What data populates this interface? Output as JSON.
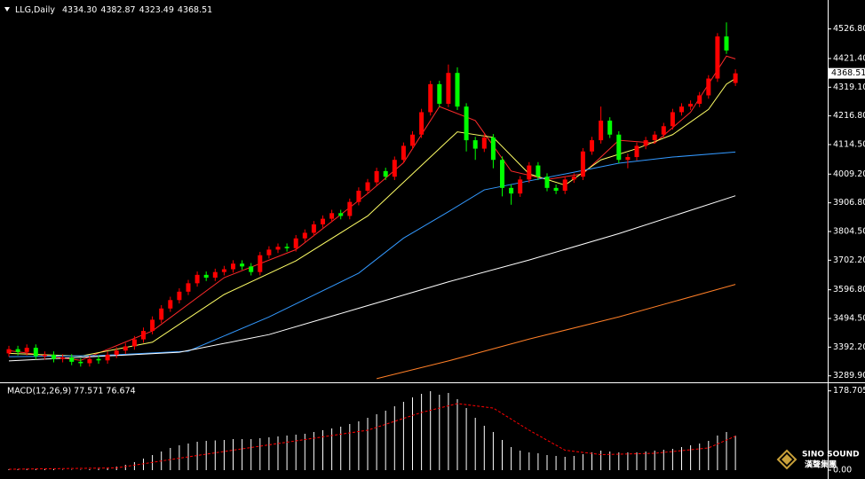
{
  "chart_data": [
    {
      "type": "candlestick",
      "title": "LLG,Daily",
      "info": [
        "4334.30",
        "4382.87",
        "4323.49",
        "4368.51"
      ],
      "up_color": "#ff0000",
      "down_color": "#00ff00",
      "open": [
        3370,
        3385,
        3375,
        3390,
        3360,
        3365,
        3350,
        3355,
        3340,
        3335,
        3350,
        3345,
        3365,
        3380,
        3395,
        3420,
        3450,
        3490,
        3530,
        3560,
        3590,
        3620,
        3650,
        3640,
        3660,
        3670,
        3690,
        3680,
        3660,
        3720,
        3740,
        3750,
        3745,
        3780,
        3800,
        3830,
        3850,
        3870,
        3860,
        3910,
        3950,
        3980,
        4020,
        4000,
        4060,
        4110,
        4150,
        4230,
        4330,
        4260,
        4370,
        4250,
        4130,
        4100,
        4140,
        4060,
        3960,
        3940,
        3990,
        4040,
        4000,
        3960,
        3950,
        3990,
        4000,
        4090,
        4130,
        4200,
        4150,
        4060,
        4070,
        4110,
        4130,
        4150,
        4180,
        4230,
        4250,
        4260,
        4290,
        4350,
        4500,
        4334.3
      ],
      "high": [
        3397,
        3397,
        3402,
        3402,
        3377,
        3377,
        3367,
        3367,
        3352,
        3362,
        3362,
        3377,
        3392,
        3407,
        3432,
        3462,
        3502,
        3542,
        3572,
        3602,
        3632,
        3662,
        3662,
        3672,
        3682,
        3702,
        3702,
        3692,
        3732,
        3752,
        3762,
        3762,
        3792,
        3812,
        3842,
        3862,
        3882,
        3882,
        3922,
        3962,
        3992,
        4032,
        4032,
        4072,
        4122,
        4162,
        4242,
        4342,
        4342,
        4400,
        4390,
        4262,
        4142,
        4152,
        4152,
        4072,
        3972,
        4002,
        4052,
        4052,
        4012,
        3972,
        4002,
        4012,
        4102,
        4142,
        4250,
        4212,
        4162,
        4082,
        4122,
        4142,
        4162,
        4192,
        4242,
        4262,
        4272,
        4302,
        4362,
        4512,
        4550,
        4382.87
      ],
      "low": [
        3358,
        3363,
        3363,
        3348,
        3348,
        3338,
        3338,
        3328,
        3323,
        3323,
        3333,
        3333,
        3353,
        3368,
        3383,
        3408,
        3438,
        3478,
        3518,
        3548,
        3578,
        3608,
        3628,
        3628,
        3648,
        3658,
        3668,
        3648,
        3648,
        3708,
        3728,
        3733,
        3733,
        3768,
        3788,
        3818,
        3838,
        3848,
        3848,
        3898,
        3938,
        3968,
        3988,
        3988,
        4048,
        4098,
        4138,
        4218,
        4248,
        4248,
        4238,
        4090,
        4060,
        4088,
        4030,
        3930,
        3900,
        3928,
        3978,
        3988,
        3948,
        3938,
        3938,
        3978,
        3988,
        4078,
        4118,
        4138,
        4048,
        4030,
        4058,
        4098,
        4118,
        4138,
        4168,
        4218,
        4238,
        4248,
        4278,
        4338,
        4438,
        4323.49
      ],
      "close": [
        3385,
        3375,
        3390,
        3360,
        3365,
        3350,
        3355,
        3340,
        3335,
        3350,
        3345,
        3365,
        3380,
        3395,
        3420,
        3450,
        3490,
        3530,
        3560,
        3590,
        3620,
        3650,
        3640,
        3660,
        3670,
        3690,
        3680,
        3660,
        3720,
        3740,
        3750,
        3745,
        3780,
        3800,
        3830,
        3850,
        3870,
        3860,
        3910,
        3950,
        3980,
        4020,
        4000,
        4060,
        4110,
        4150,
        4230,
        4330,
        4260,
        4370,
        4250,
        4130,
        4100,
        4140,
        4060,
        3960,
        3940,
        3990,
        4040,
        4000,
        3960,
        3950,
        3990,
        4000,
        4090,
        4130,
        4200,
        4150,
        4060,
        4070,
        4110,
        4130,
        4150,
        4180,
        4230,
        4250,
        4260,
        4290,
        4350,
        4500,
        4450,
        4368.51
      ],
      "lines": [
        {
          "color": "#ff2a2a",
          "x": [
            0,
            8,
            16,
            24,
            32,
            40,
            44,
            48,
            52,
            56,
            60,
            64,
            68,
            72,
            76,
            80,
            81
          ],
          "values": [
            3380,
            3345,
            3450,
            3640,
            3740,
            3940,
            4050,
            4250,
            4200,
            4020,
            3990,
            4010,
            4130,
            4120,
            4230,
            4430,
            4420
          ]
        },
        {
          "color": "#ffff66",
          "x": [
            0,
            8,
            16,
            24,
            32,
            40,
            46,
            50,
            54,
            58,
            62,
            66,
            70,
            74,
            78,
            80,
            81
          ],
          "values": [
            3370,
            3360,
            3410,
            3580,
            3700,
            3860,
            4040,
            4160,
            4140,
            4010,
            3970,
            4060,
            4100,
            4150,
            4240,
            4330,
            4350
          ]
        },
        {
          "color": "#3399ff",
          "x": [
            0,
            10,
            20,
            29,
            39,
            44,
            49,
            53,
            58,
            63,
            68,
            74,
            81
          ],
          "values": [
            3358,
            3362,
            3378,
            3500,
            3656,
            3781,
            3875,
            3953,
            3985,
            4016,
            4048,
            4070,
            4088
          ]
        },
        {
          "color": "#ffffff",
          "x": [
            0,
            19,
            29,
            39,
            49,
            58,
            68,
            81
          ],
          "values": [
            3343,
            3374,
            3437,
            3531,
            3625,
            3703,
            3797,
            3932
          ]
        },
        {
          "color": "#ff7f27",
          "x": [
            41,
            49,
            58,
            68,
            81
          ],
          "values": [
            3280,
            3343,
            3421,
            3500,
            3616
          ]
        }
      ],
      "ylim": [
        3270,
        4630
      ],
      "yticks": [
        {
          "value": 4526.8,
          "label": "4526.80"
        },
        {
          "value": 4421.4,
          "label": "4421.40"
        },
        {
          "value": 4319.1,
          "label": "4319.10"
        },
        {
          "value": 4216.8,
          "label": "4216.80"
        },
        {
          "value": 4114.5,
          "label": "4114.50"
        },
        {
          "value": 4009.2,
          "label": "4009.20"
        },
        {
          "value": 3906.8,
          "label": "3906.80"
        },
        {
          "value": 3804.5,
          "label": "3804.50"
        },
        {
          "value": 3702.2,
          "label": "3702.20"
        },
        {
          "value": 3596.8,
          "label": "3596.80"
        },
        {
          "value": 3494.5,
          "label": "3494.50"
        },
        {
          "value": 3392.2,
          "label": "3392.20"
        },
        {
          "value": 3289.9,
          "label": "3289.90"
        }
      ]
    },
    {
      "type": "macd",
      "title": "MACD(12,26,9) 77.571 76.674",
      "histogram": {
        "color": "#ffffff",
        "values": [
          2,
          2,
          3,
          3,
          2,
          2,
          1,
          1,
          1,
          2,
          3,
          5,
          8,
          12,
          18,
          26,
          34,
          42,
          50,
          56,
          60,
          64,
          66,
          67,
          68,
          70,
          70,
          70,
          72,
          74,
          76,
          78,
          80,
          82,
          86,
          90,
          94,
          98,
          104,
          110,
          118,
          126,
          134,
          144,
          154,
          164,
          172,
          178,
          170,
          174,
          160,
          140,
          118,
          100,
          86,
          68,
          52,
          44,
          40,
          38,
          34,
          32,
          30,
          32,
          36,
          40,
          44,
          42,
          40,
          40,
          40,
          42,
          44,
          46,
          48,
          52,
          56,
          60,
          66,
          78,
          86,
          77.571
        ]
      },
      "signal": {
        "color": "#ff0000",
        "x": [
          0,
          12,
          20,
          30,
          40,
          46,
          50,
          54,
          58,
          62,
          66,
          72,
          78,
          81
        ],
        "values": [
          2,
          5,
          30,
          60,
          90,
          130,
          150,
          140,
          90,
          45,
          35,
          38,
          50,
          76.674
        ]
      },
      "ylim": [
        -2,
        190
      ],
      "yticks": [
        178.705,
        {
          "value": 0,
          "label": "0.00"
        }
      ]
    }
  ],
  "watermark": {
    "name": "SINO SOUND",
    "sub": "漢聲集團"
  }
}
